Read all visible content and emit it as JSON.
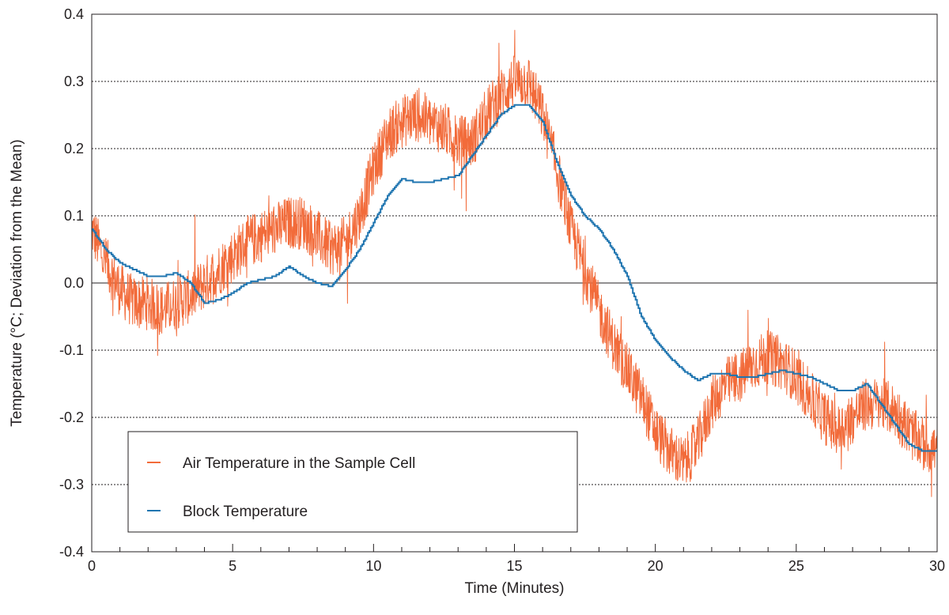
{
  "chart_data": {
    "type": "line",
    "xlabel": "Time (Minutes)",
    "ylabel": "Temperature (°C; Deviation from the Mean)",
    "xlim": [
      0,
      30
    ],
    "ylim": [
      -0.4,
      0.4
    ],
    "x_ticks": [
      "0",
      "5",
      "10",
      "15",
      "20",
      "25",
      "30"
    ],
    "y_ticks": [
      "0.4",
      "0.3",
      "0.2",
      "0.1",
      "0.0",
      "-0.1",
      "-0.2",
      "-0.3",
      "-0.4"
    ],
    "grid": "horizontal dotted lines at 0.1 intervals; solid line at 0.0",
    "legend": {
      "placement": "bottom-left"
    },
    "series": [
      {
        "name": "Air Temperature in the Sample Cell",
        "color": "#f26b3a",
        "noise_amplitude": 0.04,
        "x": [
          0,
          0.5,
          1,
          1.5,
          2,
          2.5,
          3,
          3.5,
          4,
          4.5,
          5,
          5.5,
          6,
          6.5,
          7,
          7.5,
          8,
          8.5,
          9,
          9.5,
          10,
          10.5,
          11,
          11.5,
          12,
          12.5,
          13,
          13.5,
          14,
          14.5,
          15,
          15.5,
          16,
          16.5,
          17,
          17.5,
          18,
          18.5,
          19,
          19.5,
          20,
          20.5,
          21,
          21.5,
          22,
          22.5,
          23,
          23.5,
          24,
          24.5,
          25,
          25.5,
          26,
          26.5,
          27,
          27.5,
          28,
          28.5,
          29,
          29.5,
          30
        ],
        "y": [
          0.08,
          0.03,
          -0.01,
          -0.03,
          -0.03,
          -0.04,
          -0.03,
          -0.02,
          0.0,
          0.02,
          0.04,
          0.06,
          0.07,
          0.08,
          0.09,
          0.09,
          0.07,
          0.05,
          0.06,
          0.1,
          0.17,
          0.22,
          0.24,
          0.25,
          0.24,
          0.23,
          0.21,
          0.21,
          0.25,
          0.28,
          0.3,
          0.3,
          0.25,
          0.17,
          0.08,
          0.02,
          -0.04,
          -0.09,
          -0.13,
          -0.17,
          -0.22,
          -0.25,
          -0.27,
          -0.24,
          -0.18,
          -0.15,
          -0.14,
          -0.12,
          -0.11,
          -0.12,
          -0.14,
          -0.17,
          -0.2,
          -0.22,
          -0.2,
          -0.18,
          -0.18,
          -0.19,
          -0.22,
          -0.24,
          -0.25
        ]
      },
      {
        "name": "Block Temperature",
        "color": "#1f75b0",
        "x": [
          0,
          0.5,
          1,
          1.5,
          2,
          2.5,
          3,
          3.5,
          4,
          4.5,
          5,
          5.5,
          6,
          6.5,
          7,
          7.5,
          8,
          8.5,
          9,
          9.5,
          10,
          10.5,
          11,
          11.5,
          12,
          12.5,
          13,
          13.5,
          14,
          14.5,
          15,
          15.5,
          16,
          16.5,
          17,
          17.5,
          18,
          18.5,
          19,
          19.5,
          20,
          20.5,
          21,
          21.5,
          22,
          22.5,
          23,
          23.5,
          24,
          24.5,
          25,
          25.5,
          26,
          26.5,
          27,
          27.5,
          28,
          28.5,
          29,
          29.5,
          30
        ],
        "y": [
          0.08,
          0.05,
          0.03,
          0.02,
          0.01,
          0.01,
          0.015,
          0.0,
          -0.03,
          -0.025,
          -0.015,
          0.0,
          0.005,
          0.01,
          0.025,
          0.01,
          0.0,
          -0.005,
          0.02,
          0.05,
          0.09,
          0.13,
          0.155,
          0.15,
          0.15,
          0.155,
          0.16,
          0.19,
          0.22,
          0.25,
          0.265,
          0.265,
          0.24,
          0.18,
          0.13,
          0.1,
          0.08,
          0.05,
          0.01,
          -0.05,
          -0.085,
          -0.11,
          -0.13,
          -0.145,
          -0.135,
          -0.135,
          -0.14,
          -0.14,
          -0.135,
          -0.13,
          -0.135,
          -0.14,
          -0.15,
          -0.16,
          -0.16,
          -0.15,
          -0.18,
          -0.21,
          -0.24,
          -0.25,
          -0.25
        ]
      }
    ]
  }
}
